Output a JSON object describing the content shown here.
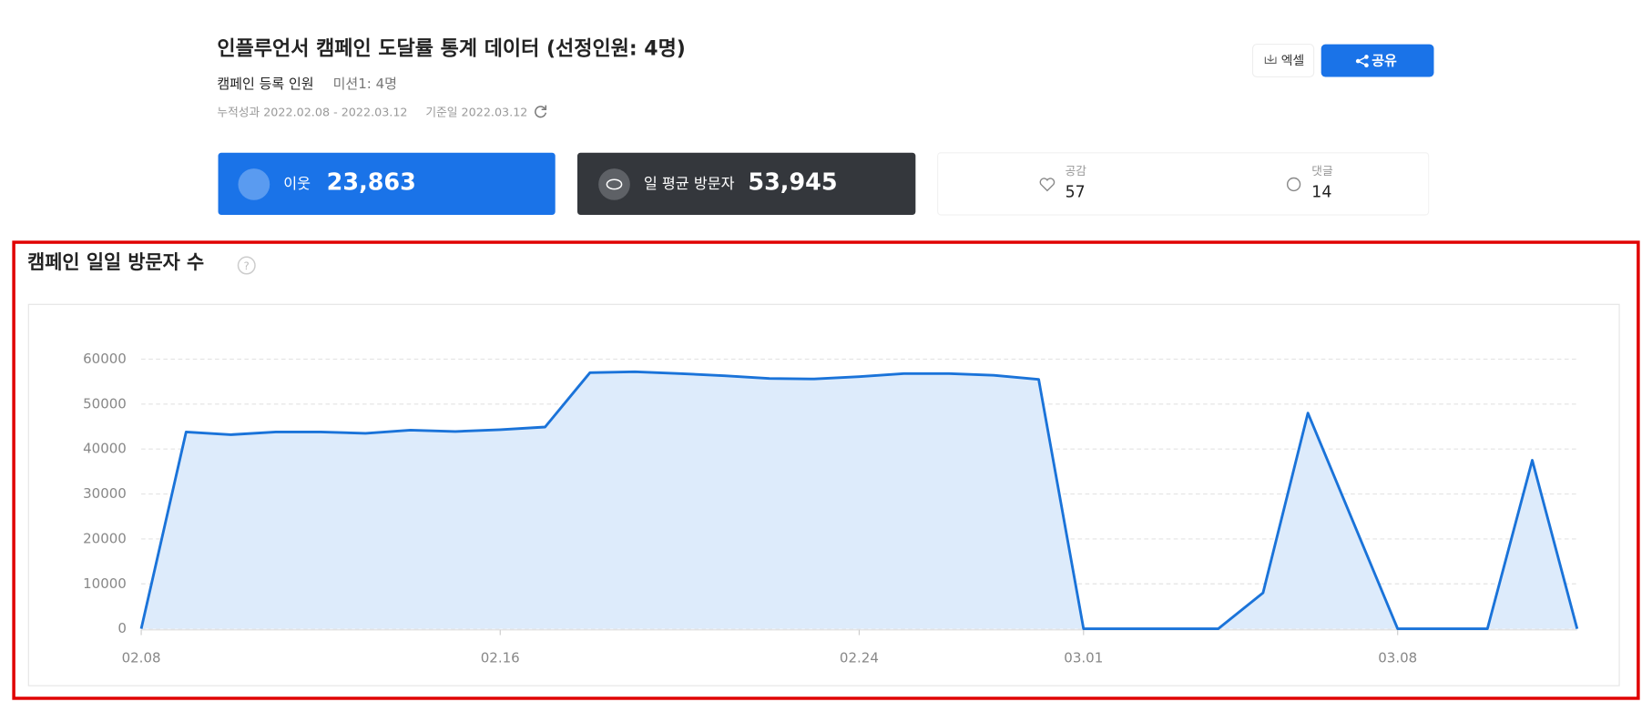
{
  "header": {
    "title": "인플루언서 캠페인 도달률 통계 데이터 (선정인원: 4명)",
    "registered_label": "캠페인 등록 인원",
    "mission": "미션1: 4명",
    "period": "누적성과 2022.02.08 - 2022.03.12",
    "base_date": "기준일 2022.03.12",
    "excel_button": "엑셀",
    "share_button": "공유"
  },
  "stats": {
    "neighbors_label": "이웃",
    "neighbors_value": "23,863",
    "daily_visitors_label": "일 평균 방문자",
    "daily_visitors_value": "53,945",
    "likes_label": "공감",
    "likes_value": "57",
    "comments_label": "댓글",
    "comments_value": "14"
  },
  "chart_data": {
    "type": "area",
    "title": "캠페인 일일 방문자 수",
    "categories": [
      "02.08",
      null,
      null,
      null,
      null,
      null,
      null,
      null,
      "02.16",
      null,
      null,
      null,
      null,
      null,
      null,
      null,
      "02.24",
      null,
      null,
      null,
      null,
      "03.01",
      null,
      null,
      null,
      null,
      null,
      null,
      "03.08",
      null,
      null,
      null,
      null
    ],
    "values": [
      0,
      43800,
      43200,
      43800,
      43800,
      43500,
      44200,
      43900,
      44300,
      44900,
      57000,
      57200,
      56800,
      56300,
      55700,
      55600,
      56100,
      56800,
      56800,
      56400,
      55500,
      0,
      0,
      0,
      0,
      8000,
      48000,
      24000,
      0,
      0,
      0,
      37500,
      0
    ],
    "color": "#1a73d9",
    "fill": "#ddebfb",
    "ylim": [
      0,
      60000
    ],
    "yticks": [
      0,
      10000,
      20000,
      30000,
      40000,
      50000,
      60000
    ],
    "grid": true
  }
}
